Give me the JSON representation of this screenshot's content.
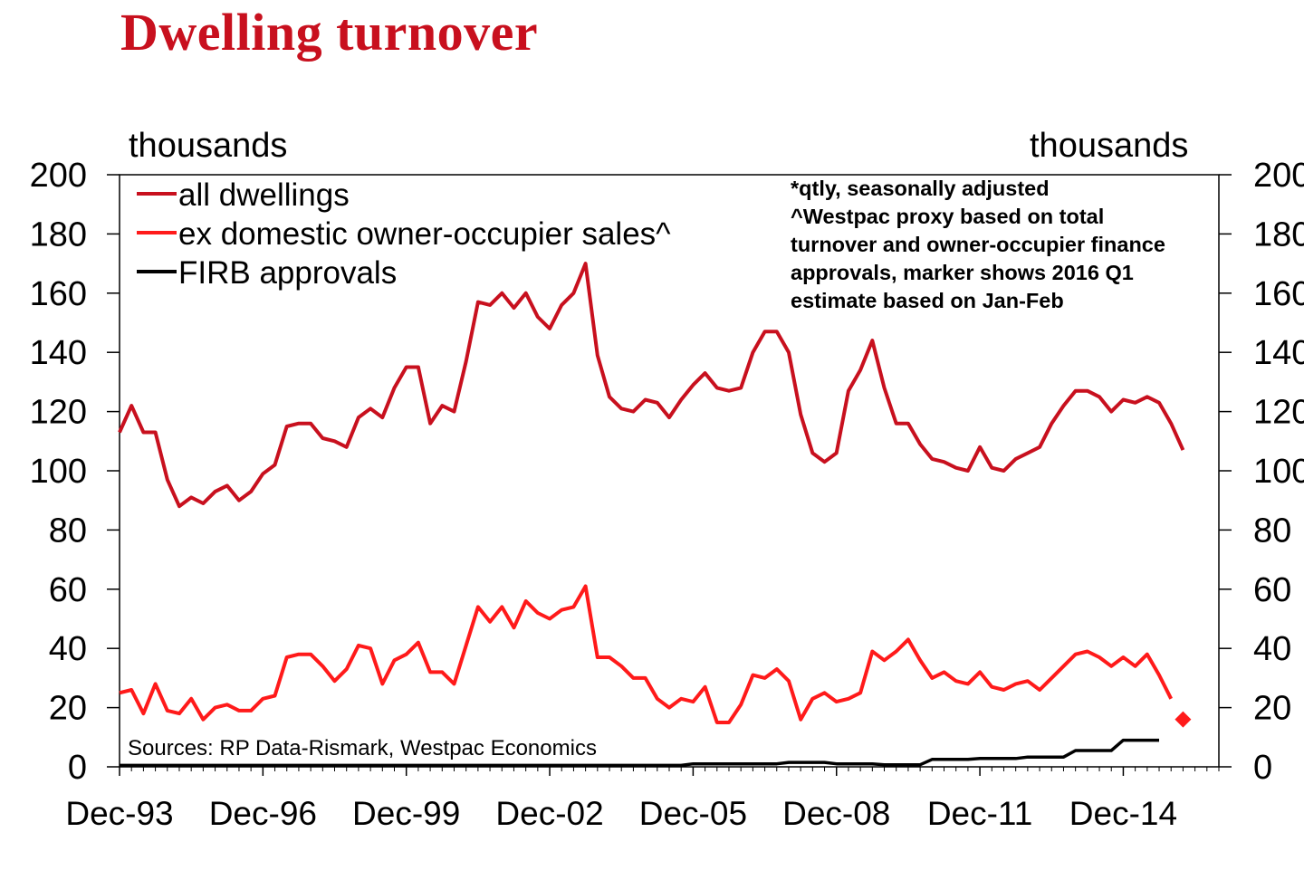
{
  "title": "Dwelling turnover",
  "chart_data": {
    "type": "line",
    "ylabel_left": "thousands",
    "ylabel_right": "thousands",
    "ylim": [
      0,
      200
    ],
    "y_ticks": [
      0,
      20,
      40,
      60,
      80,
      100,
      120,
      140,
      160,
      180,
      200
    ],
    "y_tick_labels": [
      "0",
      "20",
      "40",
      "60",
      "80",
      "100",
      "120",
      "140",
      "160",
      "180",
      "200"
    ],
    "x_tick_labels": [
      "Dec-93",
      "Dec-96",
      "Dec-99",
      "Dec-02",
      "Dec-05",
      "Dec-08",
      "Dec-11",
      "Dec-14"
    ],
    "legend_placement": "top-left",
    "notes": [
      "*qtly, seasonally adjusted",
      "^Westpac proxy based on total",
      "turnover and owner-occupier finance",
      "approvals, marker shows 2016 Q1",
      "estimate based on Jan-Feb"
    ],
    "source": "Sources: RP Data-Rismark, Westpac Economics",
    "start_quarter": "Dec-93",
    "series": [
      {
        "name": "all dwellings",
        "color": "#c8101e",
        "values": [
          113,
          122,
          113,
          113,
          97,
          88,
          91,
          89,
          93,
          95,
          90,
          93,
          99,
          102,
          115,
          116,
          116,
          111,
          110,
          108,
          118,
          121,
          118,
          128,
          135,
          135,
          116,
          122,
          120,
          137,
          157,
          156,
          160,
          155,
          160,
          152,
          148,
          156,
          160,
          170,
          139,
          125,
          121,
          120,
          124,
          123,
          118,
          124,
          129,
          133,
          128,
          127,
          128,
          140,
          147,
          147,
          140,
          119,
          106,
          103,
          106,
          127,
          134,
          144,
          128,
          116,
          116,
          109,
          104,
          103,
          101,
          100,
          108,
          101,
          100,
          104,
          106,
          108,
          116,
          122,
          127,
          127,
          125,
          120,
          124,
          123,
          125,
          123,
          116,
          107
        ]
      },
      {
        "name": "ex domestic owner-occupier sales^",
        "color": "#ff1a1a",
        "values": [
          25,
          26,
          18,
          28,
          19,
          18,
          23,
          16,
          20,
          21,
          19,
          19,
          23,
          24,
          37,
          38,
          38,
          34,
          29,
          33,
          41,
          40,
          28,
          36,
          38,
          42,
          32,
          32,
          28,
          41,
          54,
          49,
          54,
          47,
          56,
          52,
          50,
          53,
          54,
          61,
          37,
          37,
          34,
          30,
          30,
          23,
          20,
          23,
          22,
          27,
          15,
          15,
          21,
          31,
          30,
          33,
          29,
          16,
          23,
          25,
          22,
          23,
          25,
          39,
          36,
          39,
          43,
          36,
          30,
          32,
          29,
          28,
          32,
          27,
          26,
          28,
          29,
          26,
          30,
          34,
          38,
          39,
          37,
          34,
          37,
          34,
          38,
          31,
          23
        ],
        "marker": {
          "label": "2016 Q1 estimate",
          "value": 16
        }
      },
      {
        "name": "FIRB approvals",
        "color": "#000000",
        "values": [
          0.5,
          0.5,
          0.5,
          0.5,
          0.5,
          0.5,
          0.5,
          0.5,
          0.5,
          0.5,
          0.5,
          0.5,
          0.5,
          0.5,
          0.5,
          0.5,
          0.5,
          0.5,
          0.5,
          0.5,
          0.5,
          0.5,
          0.5,
          0.5,
          0.5,
          0.5,
          0.5,
          0.5,
          0.5,
          0.5,
          0.5,
          0.5,
          0.5,
          0.5,
          0.5,
          0.5,
          0.5,
          0.5,
          0.5,
          0.5,
          0.5,
          0.5,
          0.5,
          0.5,
          0.5,
          0.5,
          0.5,
          0.5,
          1,
          1,
          1,
          1,
          1,
          1,
          1,
          1,
          1.5,
          1.5,
          1.5,
          1.5,
          1,
          1,
          1,
          1,
          0.7,
          0.7,
          0.7,
          0.7,
          2.5,
          2.5,
          2.5,
          2.5,
          2.8,
          2.8,
          2.8,
          2.8,
          3.3,
          3.3,
          3.3,
          3.3,
          5.5,
          5.5,
          5.5,
          5.5,
          9,
          9,
          9,
          9
        ]
      }
    ]
  }
}
